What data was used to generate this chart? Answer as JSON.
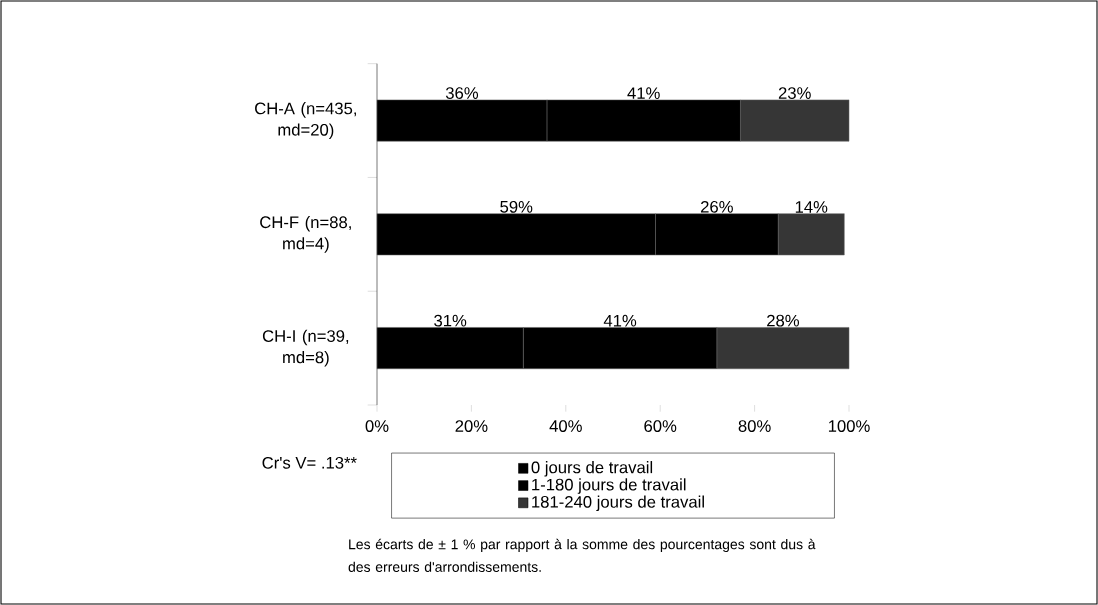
{
  "chart_data": {
    "type": "bar",
    "orientation": "horizontal",
    "stacked": true,
    "categories": [
      "CH-A (n=435, md=20)",
      "CH-F (n=88, md=4)",
      "CH-I (n=39, md=8)"
    ],
    "series": [
      {
        "name": "0 jours de travail",
        "color": "#000000",
        "values": [
          36,
          59,
          31
        ],
        "value_labels": [
          "36%",
          "59%",
          "31%"
        ]
      },
      {
        "name": "1-180 jours de travail",
        "color": "#000000",
        "values": [
          41,
          26,
          41
        ],
        "value_labels": [
          "41%",
          "26%",
          "41%"
        ]
      },
      {
        "name": "181-240 jours de travail",
        "color": "#363636",
        "values": [
          23,
          14,
          28
        ],
        "value_labels": [
          "23%",
          "14%",
          "28%"
        ]
      }
    ],
    "xlim": [
      0,
      100
    ],
    "xticks": [
      {
        "value": 0,
        "label": "0%"
      },
      {
        "value": 20,
        "label": "20%"
      },
      {
        "value": 40,
        "label": "40%"
      },
      {
        "value": 60,
        "label": "60%"
      },
      {
        "value": 80,
        "label": "80%"
      },
      {
        "value": 100,
        "label": "100%"
      }
    ],
    "legend": "bottom",
    "grid": false,
    "annotations": [
      "Cr's V= .13**",
      "Les écarts de ± 1 % par rapport à la somme des pourcentages sont dus à des erreurs d'arrondissements."
    ]
  }
}
